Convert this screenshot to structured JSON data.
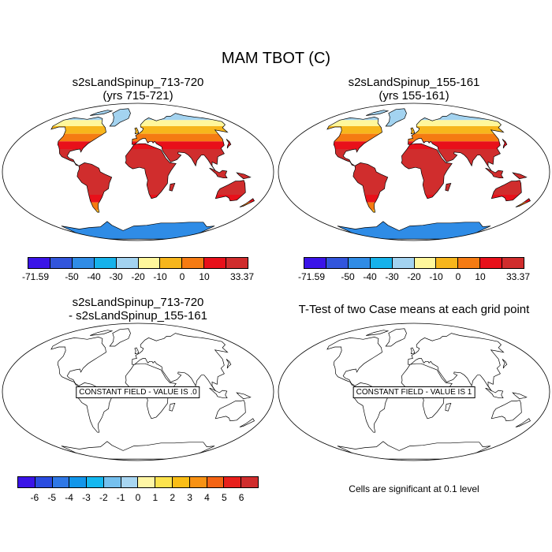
{
  "figure": {
    "title": "MAM TBOT (C)"
  },
  "panels": [
    {
      "title_line1": "s2sLandSpinup_713-720",
      "title_line2": "(yrs 715-721)",
      "kind": "field"
    },
    {
      "title_line1": "s2sLandSpinup_155-161",
      "title_line2": "(yrs 155-161)",
      "kind": "field"
    },
    {
      "title_line1": "s2sLandSpinup_713-720",
      "title_line2": "- s2sLandSpinup_155-161",
      "kind": "constant",
      "constant_label": "CONSTANT FIELD - VALUE IS .0"
    },
    {
      "title_line1": "T-Test of two Case means at each grid point",
      "title_line2": "",
      "kind": "constant",
      "constant_label": "CONSTANT FIELD - VALUE IS 1"
    }
  ],
  "colorbars": {
    "temperature": {
      "colors": [
        "#3a14e8",
        "#3255dc",
        "#2f8ce6",
        "#16b2ea",
        "#a3d3f0",
        "#fff79c",
        "#f7b61c",
        "#f57b12",
        "#e8101a",
        "#d02d2d"
      ],
      "tick_labels": [
        "-71.59",
        "-50",
        "-40",
        "-30",
        "-20",
        "-10",
        "0",
        "10",
        "33.37"
      ]
    },
    "difference": {
      "colors": [
        "#3a14e8",
        "#2a4ce0",
        "#2f78e6",
        "#1296ea",
        "#15b8f0",
        "#75c0ee",
        "#a8d6f2",
        "#fff6a5",
        "#fce34e",
        "#f9bd16",
        "#f89214",
        "#f46414",
        "#e8201c",
        "#d02d2d"
      ],
      "tick_labels": [
        "-6",
        "-5",
        "-4",
        "-3",
        "-2",
        "-1",
        "0",
        "1",
        "2",
        "3",
        "4",
        "5",
        "6"
      ]
    }
  },
  "footnote": "Cells are significant at 0.1 level",
  "chart_data": {
    "type": "heatmap",
    "title": "MAM TBOT (C)",
    "variable": "TBOT",
    "units": "C",
    "season": "MAM",
    "panels": [
      {
        "name": "s2sLandSpinup_713-720 (yrs 715-721)",
        "min": -71.59,
        "max": 33.37,
        "levels": [
          -50,
          -40,
          -30,
          -20,
          -10,
          0,
          10
        ]
      },
      {
        "name": "s2sLandSpinup_155-161 (yrs 155-161)",
        "min": -71.59,
        "max": 33.37,
        "levels": [
          -50,
          -40,
          -30,
          -20,
          -10,
          0,
          10
        ]
      },
      {
        "name": "s2sLandSpinup_713-720 - s2sLandSpinup_155-161",
        "constant_value": 0.0,
        "levels": [
          -6,
          -5,
          -4,
          -3,
          -2,
          -1,
          0,
          1,
          2,
          3,
          4,
          5,
          6
        ]
      },
      {
        "name": "T-Test of two Case means at each grid point",
        "constant_value": 1,
        "significance_level": 0.1
      }
    ]
  }
}
